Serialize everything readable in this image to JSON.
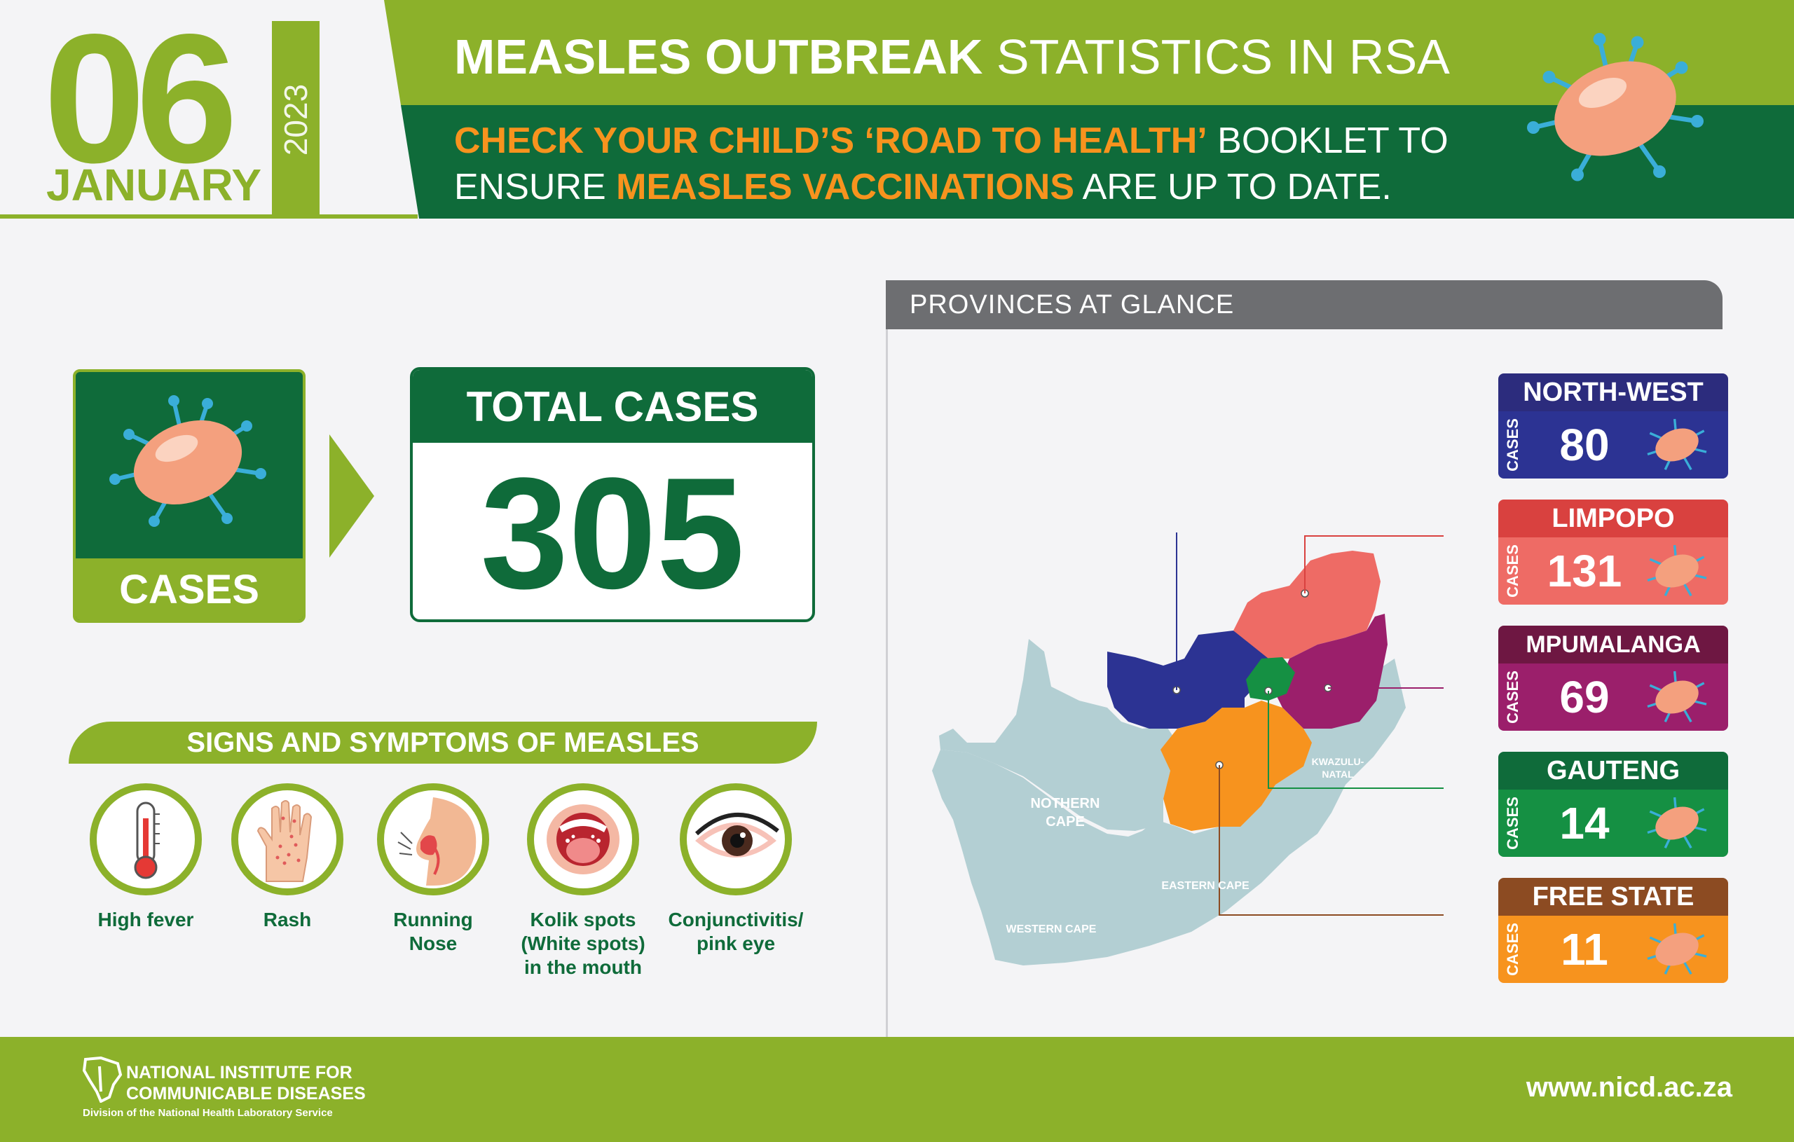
{
  "header": {
    "day": "06",
    "month": "JANUARY",
    "year": "2023",
    "title_bold": "MEASLES OUTBREAK",
    "title_rest": " STATISTICS IN RSA",
    "sub_1_hl": "CHECK YOUR CHILD’S ‘ROAD TO HEALTH’",
    "sub_1_rest": " BOOKLET TO",
    "sub_2_pre": "ENSURE ",
    "sub_2_hl": "MEASLES VACCINATIONS",
    "sub_2_rest": " ARE UP TO DATE."
  },
  "cases": {
    "label": "CASES"
  },
  "total": {
    "title": "TOTAL CASES",
    "value": "305"
  },
  "symptoms": {
    "title": "SIGNS AND SYMPTOMS OF MEASLES",
    "items": [
      {
        "label": "High fever",
        "icon": "thermometer-icon"
      },
      {
        "label": "Rash",
        "icon": "hand-rash-icon"
      },
      {
        "label": "Running\nNose",
        "icon": "nose-icon"
      },
      {
        "label": "Kolik spots\n(White spots)\nin the mouth",
        "icon": "mouth-icon"
      },
      {
        "label": "Conjunctivitis/\npink eye",
        "icon": "eye-icon"
      }
    ]
  },
  "provinces": {
    "title": "PROVINCES AT GLANCE",
    "cases_label": "CASES",
    "items": [
      {
        "name": "NORTH-WEST",
        "value": "80",
        "head": "#2c2c7d",
        "body": "#2c3393"
      },
      {
        "name": "LIMPOPO",
        "value": "131",
        "head": "#d9413f",
        "body": "#ee6b65"
      },
      {
        "name": "MPUMALANGA",
        "value": "69",
        "head": "#6e1742",
        "body": "#9b1f6b"
      },
      {
        "name": "GAUTENG",
        "value": "14",
        "head": "#0f6b3a",
        "body": "#159043"
      },
      {
        "name": "FREE STATE",
        "value": "11",
        "head": "#8c4b22",
        "body": "#f7931e"
      }
    ],
    "map_labels": {
      "northern_cape": "NOTHERN\nCAPE",
      "kzn": "KWAZULU-\nNATAL",
      "eastern_cape": "EASTERN CAPE",
      "western_cape": "WESTERN CAPE"
    }
  },
  "footer": {
    "org": "NATIONAL INSTITUTE FOR\nCOMMUNICABLE DISEASES",
    "division": "Division of the National Health Laboratory Service",
    "url": "www.nicd.ac.za"
  },
  "colors": {
    "light_green": "#8cb12a",
    "dark_green": "#0f6b3a",
    "orange": "#f7931e",
    "map_grey": "#b3cfd3"
  }
}
